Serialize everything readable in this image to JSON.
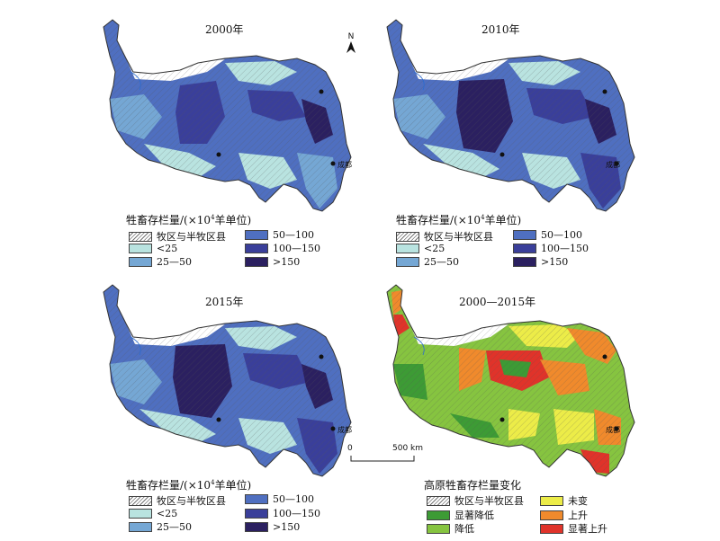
{
  "panels": [
    {
      "title": "2000年"
    },
    {
      "title": "2010年"
    },
    {
      "title": "2015年"
    },
    {
      "title": "2000—2015年"
    }
  ],
  "city_label": "成都",
  "north_label": "N",
  "scale": {
    "zero": "0",
    "end": "500 km"
  },
  "legend_density": {
    "title_prefix": "牲畜存栏量/(×10",
    "title_sup": "4",
    "title_suffix": "羊单位)",
    "items": [
      {
        "label": "牧区与半牧区县",
        "color": "hatch"
      },
      {
        "label": "<25",
        "color": "#b9e3e0"
      },
      {
        "label": "25—50",
        "color": "#75a7d4"
      },
      {
        "label": "50—100",
        "color": "#4f6fc0"
      },
      {
        "label": "100—150",
        "color": "#3a3f9a"
      },
      {
        "label": ">150",
        "color": "#2b2060"
      }
    ]
  },
  "legend_change": {
    "title": "高原牲畜存栏量变化",
    "items": [
      {
        "label": "牧区与半牧区县",
        "color": "hatch"
      },
      {
        "label": "显著降低",
        "color": "#3d9b35"
      },
      {
        "label": "降低",
        "color": "#86c440"
      },
      {
        "label": "未变",
        "color": "#ecec48"
      },
      {
        "label": "上升",
        "color": "#f08a2c"
      },
      {
        "label": "显著上升",
        "color": "#e0332a"
      }
    ]
  }
}
